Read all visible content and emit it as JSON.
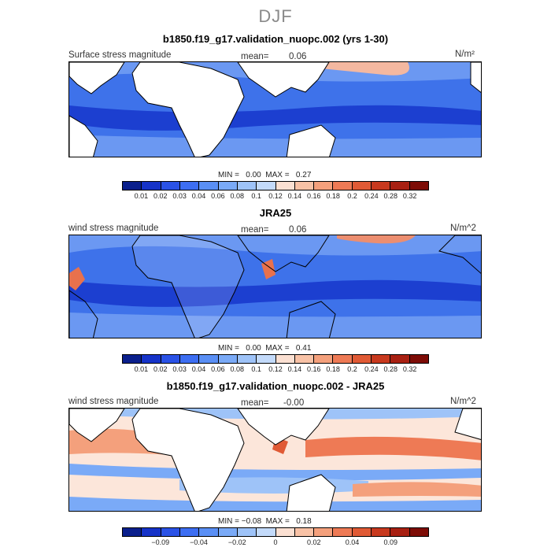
{
  "page_title": "DJF",
  "panels": [
    {
      "title": "b1850.f19_g17.validation_nuopc.002 (yrs 1-30)",
      "left_label": "Surface stress magnitude",
      "mean_text": "mean=",
      "mean_value": "0.06",
      "units": "N/m²",
      "minmax_text": "MIN =   0.00  MAX =   0.27",
      "min": 0.0,
      "max": 0.27,
      "scale": "absolute",
      "colorbar_colors": [
        "#0a1f8c",
        "#1633c8",
        "#2a52e6",
        "#3d6ef2",
        "#5a8ff5",
        "#7aaaf7",
        "#9ec3f8",
        "#c3dafa",
        "#fbe0d2",
        "#f8c2a6",
        "#f4a07c",
        "#ee7a55",
        "#e05a35",
        "#c8391e",
        "#a82012",
        "#7d0c06"
      ],
      "colorbar_labels": [
        "0.01",
        "0.02",
        "0.03",
        "0.04",
        "0.06",
        "0.08",
        "0.1",
        "0.12",
        "0.14",
        "0.16",
        "0.18",
        "0.2",
        "0.24",
        "0.28",
        "0.32"
      ]
    },
    {
      "title": "JRA25",
      "left_label": "wind stress magnitude",
      "mean_text": "mean=",
      "mean_value": "0.06",
      "units": "N/m^2",
      "minmax_text": "MIN =   0.00  MAX =   0.41",
      "min": 0.0,
      "max": 0.41,
      "scale": "absolute",
      "colorbar_colors": [
        "#0a1f8c",
        "#1633c8",
        "#2a52e6",
        "#3d6ef2",
        "#5a8ff5",
        "#7aaaf7",
        "#9ec3f8",
        "#c3dafa",
        "#fbe0d2",
        "#f8c2a6",
        "#f4a07c",
        "#ee7a55",
        "#e05a35",
        "#c8391e",
        "#a82012",
        "#7d0c06"
      ],
      "colorbar_labels": [
        "0.01",
        "0.02",
        "0.03",
        "0.04",
        "0.06",
        "0.08",
        "0.1",
        "0.12",
        "0.14",
        "0.16",
        "0.18",
        "0.2",
        "0.24",
        "0.28",
        "0.32"
      ]
    },
    {
      "title": "b1850.f19_g17.validation_nuopc.002 - JRA25",
      "left_label": "wind stress magnitude",
      "mean_text": "mean=",
      "mean_value": "-0.00",
      "units": "N/m^2",
      "minmax_text": "MIN = −0.08  MAX =   0.18",
      "min": -0.08,
      "max": 0.18,
      "scale": "difference",
      "colorbar_colors": [
        "#0a1f8c",
        "#1633c8",
        "#2a52e6",
        "#3d6ef2",
        "#5a8ff5",
        "#7aaaf7",
        "#9ec3f8",
        "#c3dafa",
        "#fbe0d2",
        "#f8c2a6",
        "#f4a07c",
        "#ee7a55",
        "#e05a35",
        "#c8391e",
        "#a82012",
        "#7d0c06"
      ],
      "colorbar_labels": [
        "",
        "−0.09",
        "",
        "−0.04",
        "",
        "−0.02",
        "",
        "0",
        "",
        "0.02",
        "",
        "0.04",
        "",
        "0.09",
        ""
      ]
    }
  ]
}
